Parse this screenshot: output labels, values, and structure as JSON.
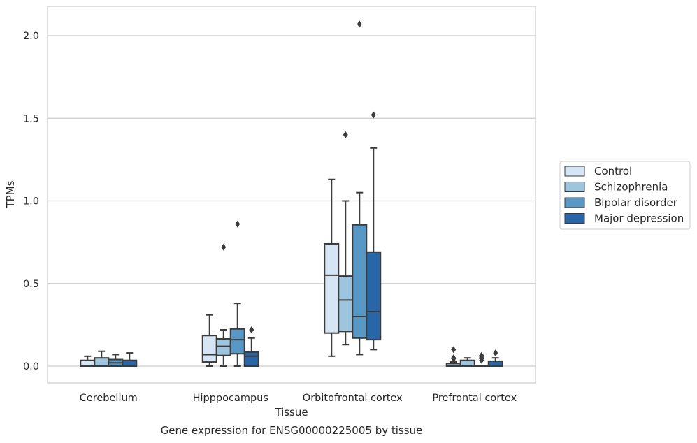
{
  "chart_data": {
    "type": "box",
    "title": "",
    "caption": "Gene expression for ENSG00000225005 by tissue",
    "xlabel": "Tissue",
    "ylabel": "TPMs",
    "ylim": [
      -0.1,
      2.18
    ],
    "yticks": [
      0.0,
      0.5,
      1.0,
      1.5,
      2.0
    ],
    "ytick_labels": [
      "0.0",
      "0.5",
      "1.0",
      "1.5",
      "2.0"
    ],
    "grid": "horizontal",
    "legend_position": "right",
    "categories": [
      "Cerebellum",
      "Hipppocampus",
      "Orbitofrontal cortex",
      "Prefrontal cortex"
    ],
    "series": [
      {
        "name": "Control",
        "color": "#d6e5f3",
        "boxes": [
          {
            "whislo": 0.0,
            "q1": 0.0,
            "med": 0.0,
            "q3": 0.035,
            "whishi": 0.06,
            "fliers": []
          },
          {
            "whislo": 0.0,
            "q1": 0.025,
            "med": 0.07,
            "q3": 0.185,
            "whishi": 0.31,
            "fliers": []
          },
          {
            "whislo": 0.06,
            "q1": 0.2,
            "med": 0.55,
            "q3": 0.74,
            "whishi": 1.13,
            "fliers": []
          },
          {
            "whislo": 0.0,
            "q1": 0.0,
            "med": 0.0,
            "q3": 0.015,
            "whishi": 0.025,
            "fliers": [
              0.03,
              0.045,
              0.05,
              0.1
            ]
          }
        ]
      },
      {
        "name": "Schizophrenia",
        "color": "#9dc5de",
        "boxes": [
          {
            "whislo": 0.0,
            "q1": 0.0,
            "med": 0.0,
            "q3": 0.05,
            "whishi": 0.09,
            "fliers": []
          },
          {
            "whislo": 0.0,
            "q1": 0.065,
            "med": 0.12,
            "q3": 0.165,
            "whishi": 0.22,
            "fliers": [
              0.72
            ]
          },
          {
            "whislo": 0.13,
            "q1": 0.21,
            "med": 0.4,
            "q3": 0.545,
            "whishi": 1.0,
            "fliers": [
              1.4
            ]
          },
          {
            "whislo": 0.0,
            "q1": 0.0,
            "med": 0.0,
            "q3": 0.035,
            "whishi": 0.05,
            "fliers": []
          }
        ]
      },
      {
        "name": "Bipolar disorder",
        "color": "#5798c6",
        "boxes": [
          {
            "whislo": 0.0,
            "q1": 0.0,
            "med": 0.02,
            "q3": 0.04,
            "whishi": 0.07,
            "fliers": []
          },
          {
            "whislo": 0.0,
            "q1": 0.075,
            "med": 0.16,
            "q3": 0.225,
            "whishi": 0.38,
            "fliers": [
              0.86
            ]
          },
          {
            "whislo": 0.07,
            "q1": 0.17,
            "med": 0.3,
            "q3": 0.855,
            "whishi": 1.05,
            "fliers": [
              2.07
            ]
          },
          {
            "whislo": 0.0,
            "q1": 0.0,
            "med": 0.0,
            "q3": 0.0,
            "whishi": 0.0,
            "fliers": [
              0.035,
              0.045,
              0.055,
              0.065
            ]
          }
        ]
      },
      {
        "name": "Major depression",
        "color": "#2966a8",
        "boxes": [
          {
            "whislo": 0.0,
            "q1": 0.0,
            "med": 0.0,
            "q3": 0.035,
            "whishi": 0.08,
            "fliers": []
          },
          {
            "whislo": 0.0,
            "q1": 0.0,
            "med": 0.06,
            "q3": 0.085,
            "whishi": 0.17,
            "fliers": [
              0.22
            ]
          },
          {
            "whislo": 0.1,
            "q1": 0.16,
            "med": 0.33,
            "q3": 0.69,
            "whishi": 1.32,
            "fliers": [
              1.52
            ]
          },
          {
            "whislo": 0.0,
            "q1": 0.0,
            "med": 0.0,
            "q3": 0.03,
            "whishi": 0.05,
            "fliers": [
              0.08
            ]
          }
        ]
      }
    ]
  }
}
